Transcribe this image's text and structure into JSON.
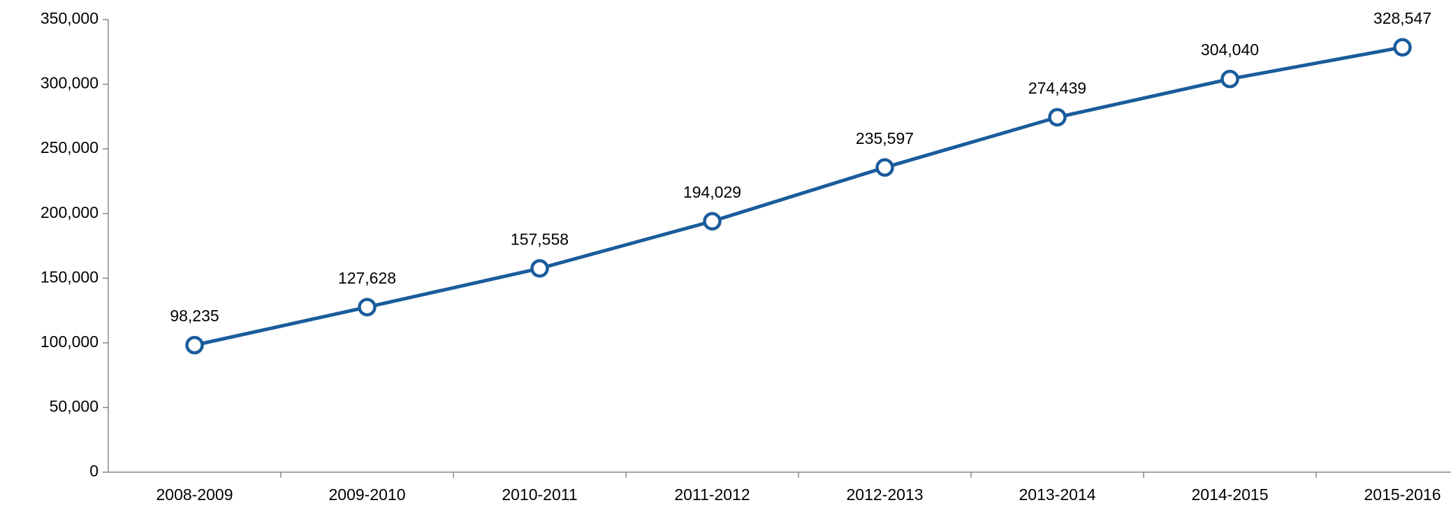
{
  "chart_data": {
    "type": "line",
    "categories": [
      "2008-2009",
      "2009-2010",
      "2010-2011",
      "2011-2012",
      "2012-2013",
      "2013-2014",
      "2014-2015",
      "2015-2016"
    ],
    "series": [
      {
        "color": "#1a5c9c",
        "values": [
          98235,
          127628,
          157558,
          194029,
          235597,
          274439,
          304040,
          328547
        ],
        "value_labels": [
          "98,235",
          "127,628",
          "157,558",
          "194,029",
          "235,597",
          "274,439",
          "304,040",
          "328,547"
        ]
      }
    ],
    "ylim": [
      0,
      350000
    ],
    "yticks": [
      0,
      {
        "value": 50000,
        "label": "50,000"
      },
      {
        "value": 100000,
        "label": "100,000"
      },
      {
        "value": 150000,
        "label": "150,000"
      },
      {
        "value": 200000,
        "label": "200,000"
      },
      {
        "value": 250000,
        "label": "250,000"
      },
      {
        "value": 300000,
        "label": "300,000"
      },
      {
        "value": 350000,
        "label": "350,000"
      }
    ]
  }
}
